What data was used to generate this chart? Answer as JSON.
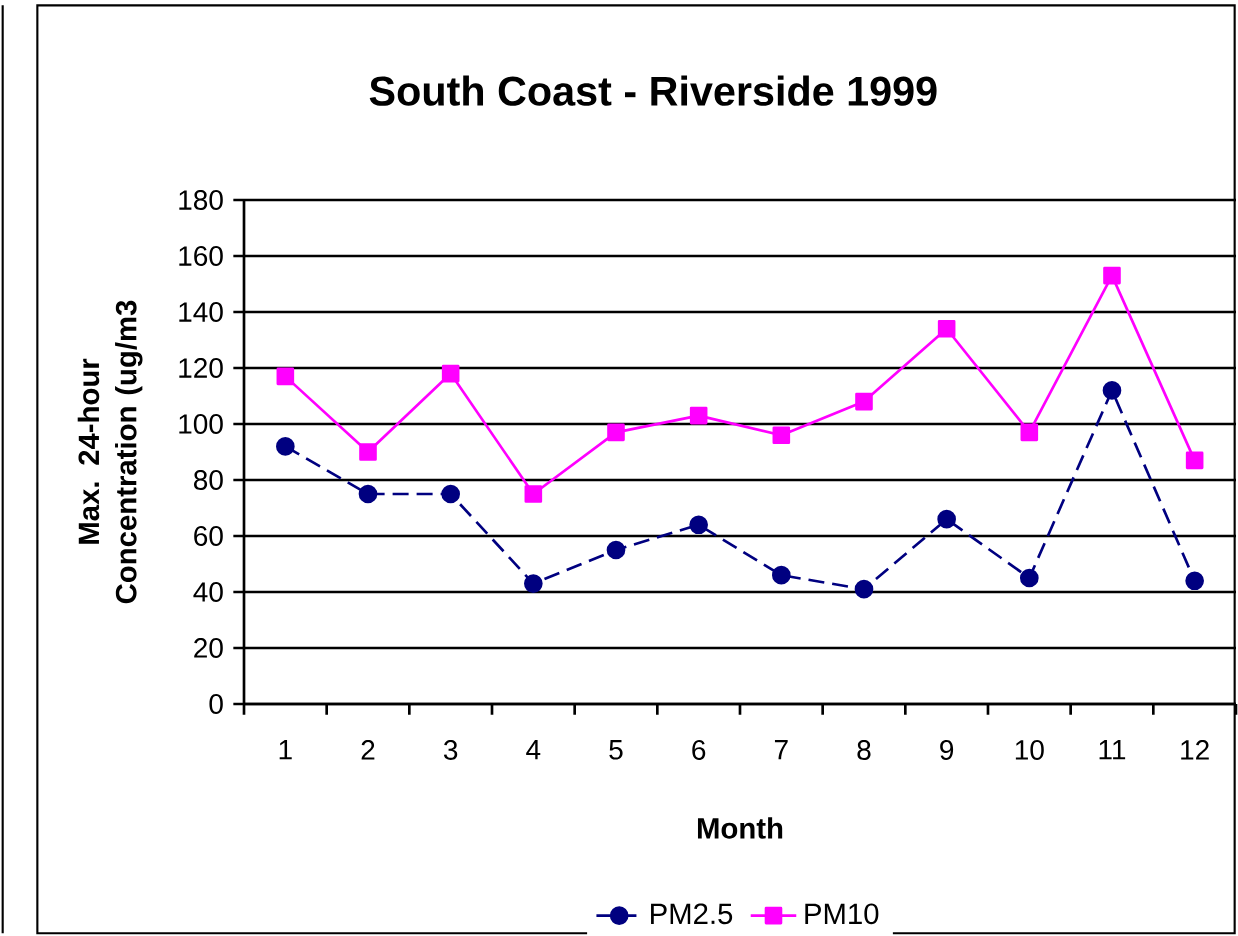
{
  "chart_data": {
    "type": "line",
    "title": "South Coast - Riverside 1999",
    "xlabel": "Month",
    "ylabel": "Max. 24-hour Concentration (ug/m3",
    "categories": [
      "1",
      "2",
      "3",
      "4",
      "5",
      "6",
      "7",
      "8",
      "9",
      "10",
      "11",
      "12"
    ],
    "ylim": [
      0,
      180
    ],
    "yticks": [
      0,
      20,
      40,
      60,
      80,
      100,
      120,
      140,
      160,
      180
    ],
    "grid": "y",
    "legend": "bottom",
    "series": [
      {
        "name": "PM2.5",
        "color": "#000080",
        "marker": "circle",
        "line_style": "dashed",
        "values": [
          92,
          75,
          75,
          43,
          55,
          64,
          46,
          41,
          66,
          45,
          112,
          44
        ]
      },
      {
        "name": "PM10",
        "color": "#ff00ff",
        "marker": "square",
        "line_style": "solid",
        "values": [
          117,
          90,
          118,
          75,
          97,
          103,
          96,
          108,
          134,
          97,
          153,
          87
        ]
      }
    ]
  }
}
